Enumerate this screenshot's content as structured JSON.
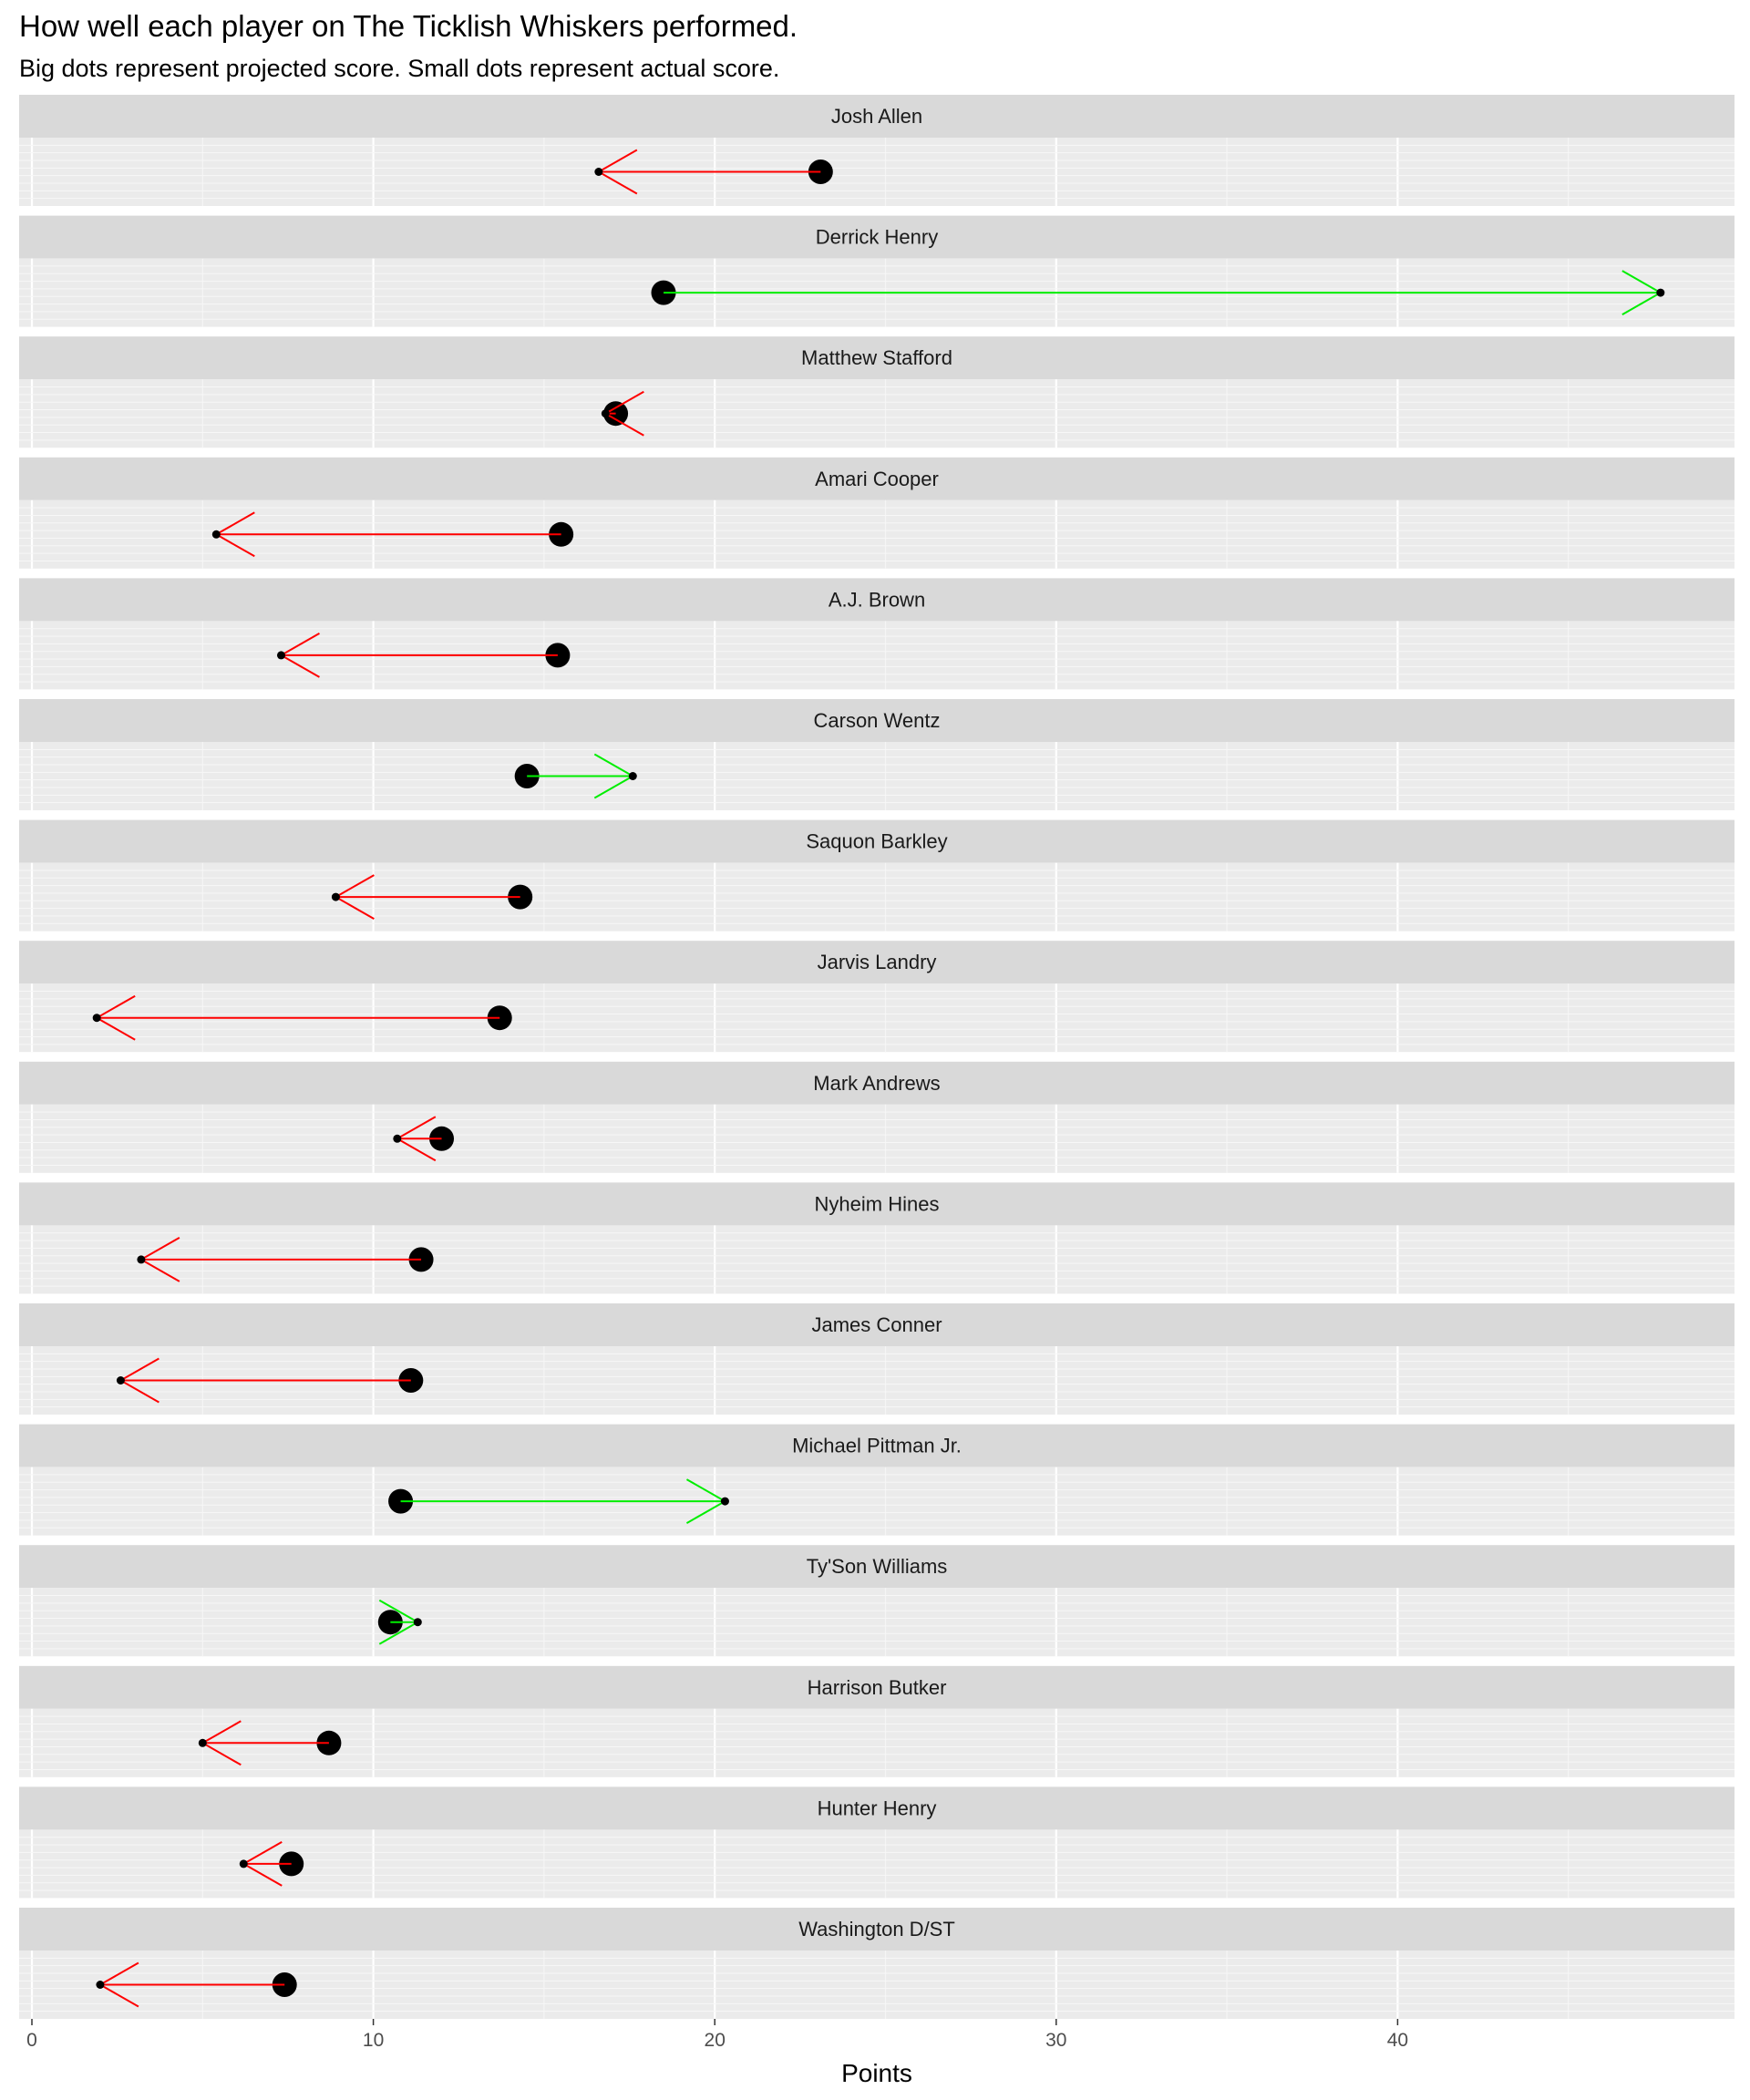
{
  "chart_data": {
    "type": "dot-arrow",
    "title": "How well each player on The Ticklish Whiskers performed.",
    "subtitle": "Big dots represent projected score.  Small dots represent actual score.",
    "xlabel": "Points",
    "xlim": [
      -0.4,
      50.4
    ],
    "xticks": [
      0,
      10,
      20,
      30,
      40
    ],
    "tick_labels": [
      "0",
      "10",
      "20",
      "30",
      "40"
    ],
    "grid": true,
    "colors": {
      "above_projection": "#00ee00",
      "below_projection": "#ff0000",
      "dot": "#000000",
      "panel": "#ebebeb",
      "strip": "#d9d9d9"
    },
    "players": [
      {
        "name": "Josh Allen",
        "projected": 23.1,
        "actual": 16.6
      },
      {
        "name": "Derrick Henry",
        "projected": 18.5,
        "actual": 47.7
      },
      {
        "name": "Matthew Stafford",
        "projected": 17.1,
        "actual": 16.8
      },
      {
        "name": "Amari Cooper",
        "projected": 15.5,
        "actual": 5.4
      },
      {
        "name": "A.J. Brown",
        "projected": 15.4,
        "actual": 7.3
      },
      {
        "name": "Carson Wentz",
        "projected": 14.5,
        "actual": 17.6
      },
      {
        "name": "Saquon Barkley",
        "projected": 14.3,
        "actual": 8.9
      },
      {
        "name": "Jarvis Landry",
        "projected": 13.7,
        "actual": 1.9
      },
      {
        "name": "Mark Andrews",
        "projected": 12.0,
        "actual": 10.7
      },
      {
        "name": "Nyheim Hines",
        "projected": 11.4,
        "actual": 3.2
      },
      {
        "name": "James Conner",
        "projected": 11.1,
        "actual": 2.6
      },
      {
        "name": "Michael Pittman Jr.",
        "projected": 10.8,
        "actual": 20.3
      },
      {
        "name": "Ty'Son Williams",
        "projected": 10.5,
        "actual": 11.3
      },
      {
        "name": "Harrison Butker",
        "projected": 8.7,
        "actual": 5.0
      },
      {
        "name": "Hunter Henry",
        "projected": 7.6,
        "actual": 6.2
      },
      {
        "name": "Washington D/ST",
        "projected": 7.4,
        "actual": 2.0
      }
    ]
  }
}
